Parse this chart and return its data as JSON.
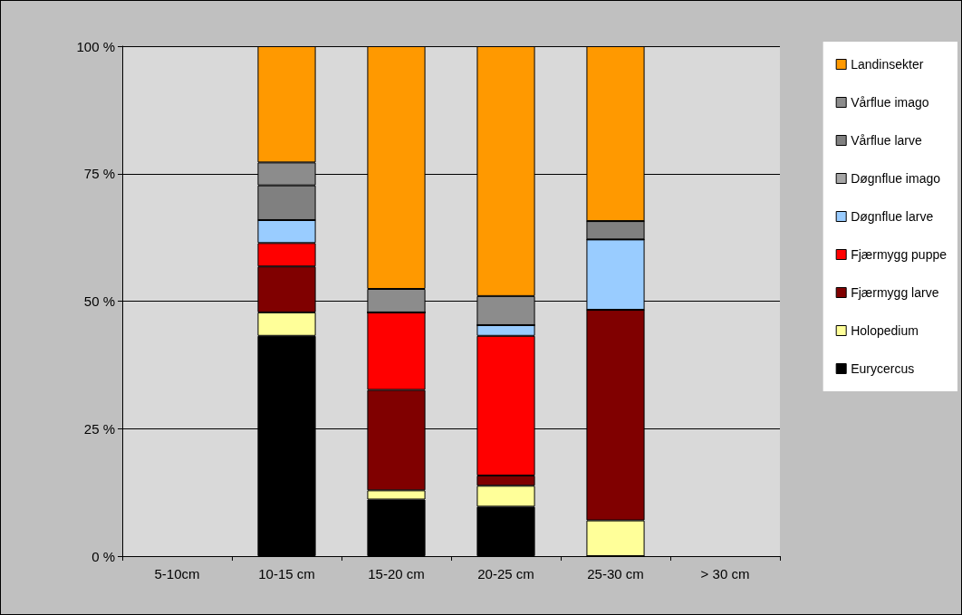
{
  "chart_data": {
    "type": "bar",
    "stacked": true,
    "categories": [
      "5-10cm",
      "10-15 cm",
      "15-20 cm",
      "20-25 cm",
      "25-30 cm",
      "> 30 cm"
    ],
    "series": [
      {
        "name": "Eurycercus",
        "color": "#000000",
        "values": [
          null,
          43.2,
          11.1,
          9.7,
          0,
          null
        ]
      },
      {
        "name": "Holopedium",
        "color": "#ffff99",
        "values": [
          null,
          4.6,
          1.8,
          4.1,
          7.0,
          null
        ]
      },
      {
        "name": "Fjærmygg larve",
        "color": "#800000",
        "values": [
          null,
          9.0,
          19.7,
          2.0,
          41.3,
          null
        ]
      },
      {
        "name": "Fjærmygg puppe",
        "color": "#ff0000",
        "values": [
          null,
          4.6,
          15.2,
          27.4,
          0,
          null
        ]
      },
      {
        "name": "Døgnflue larve",
        "color": "#99ccff",
        "values": [
          null,
          4.5,
          0,
          2.1,
          13.8,
          null
        ]
      },
      {
        "name": "Døgnflue imago",
        "color": "#a6a6a6",
        "values": [
          null,
          0,
          0,
          0,
          0,
          null
        ]
      },
      {
        "name": "Vårflue larve",
        "color": "#808080",
        "values": [
          null,
          6.8,
          0,
          0,
          3.6,
          null
        ]
      },
      {
        "name": "Vårflue imago",
        "color": "#8c8c8c",
        "values": [
          null,
          4.5,
          4.6,
          5.7,
          0,
          null
        ]
      },
      {
        "name": "Landinsekter",
        "color": "#ff9900",
        "values": [
          null,
          22.8,
          47.6,
          49.0,
          34.3,
          null
        ]
      }
    ],
    "ylim": [
      0,
      100
    ],
    "yticks": [
      {
        "value": 0,
        "label": "0 %"
      },
      {
        "value": 25,
        "label": "25 %"
      },
      {
        "value": 50,
        "label": "50 %"
      },
      {
        "value": 75,
        "label": "75 %"
      },
      {
        "value": 100,
        "label": "100 %"
      }
    ],
    "grid": "y",
    "legend": "right"
  }
}
